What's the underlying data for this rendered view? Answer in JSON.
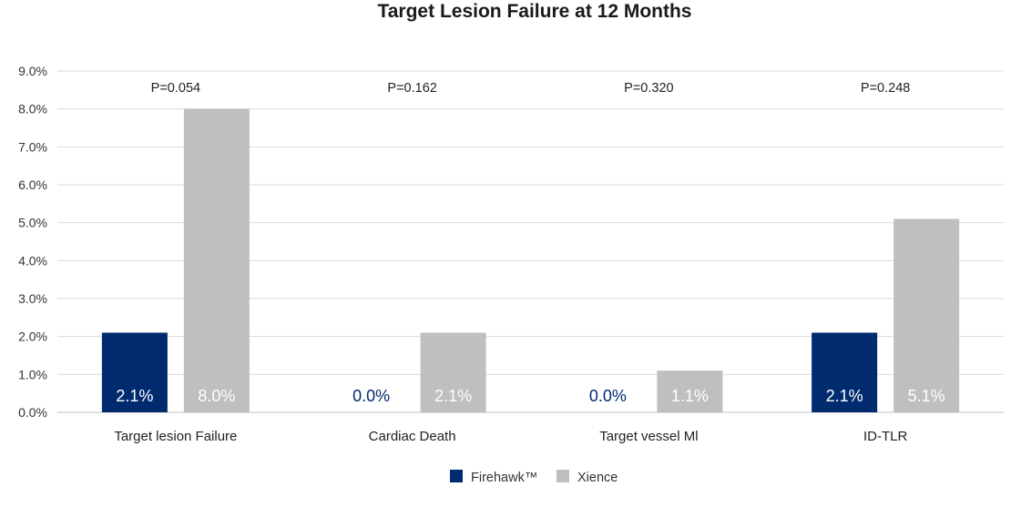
{
  "chart_data": {
    "type": "bar",
    "title": "Target Lesion Failure at 12 Months",
    "categories": [
      "Target lesion Failure",
      "Cardiac Death",
      "Target vessel Ml",
      "ID-TLR"
    ],
    "series": [
      {
        "name": "Firehawk™",
        "color": "#002b6f",
        "values": [
          2.1,
          0.0,
          0.0,
          2.1
        ],
        "labels": [
          "2.1%",
          "0.0%",
          "0.0%",
          "2.1%"
        ]
      },
      {
        "name": "Xience",
        "color": "#bfbfbf",
        "values": [
          8.0,
          2.1,
          1.1,
          5.1
        ],
        "labels": [
          "8.0%",
          "2.1%",
          "1.1%",
          "5.1%"
        ]
      }
    ],
    "annotations": [
      "P=0.054",
      "P=0.162",
      "P=0.320",
      "P=0.248"
    ],
    "yticks": [
      "0.0%",
      "1.0%",
      "2.0%",
      "3.0%",
      "4.0%",
      "5.0%",
      "6.0%",
      "7.0%",
      "8.0%",
      "9.0%"
    ],
    "ylim": [
      0,
      9
    ],
    "xlabel": "",
    "ylabel": "",
    "grid": true,
    "legend": "bottom-center"
  },
  "colors": {
    "label_on_dark": "#ffffff",
    "label_zero": "#002b6f",
    "grid": "#d9d9d9"
  }
}
